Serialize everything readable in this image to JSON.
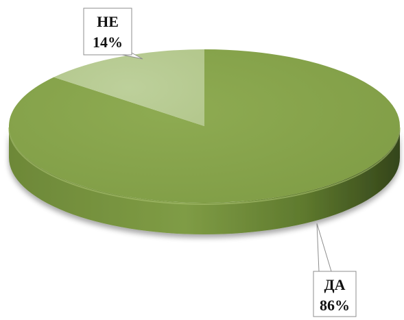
{
  "chart_data": {
    "type": "pie",
    "style": "3d",
    "slices": [
      {
        "label": "ДА",
        "value": 86,
        "value_label": "86%",
        "color": "#86a34b"
      },
      {
        "label": "НЕ",
        "value": 14,
        "value_label": "14%",
        "color": "#b8cc94"
      }
    ],
    "legend": "none"
  }
}
